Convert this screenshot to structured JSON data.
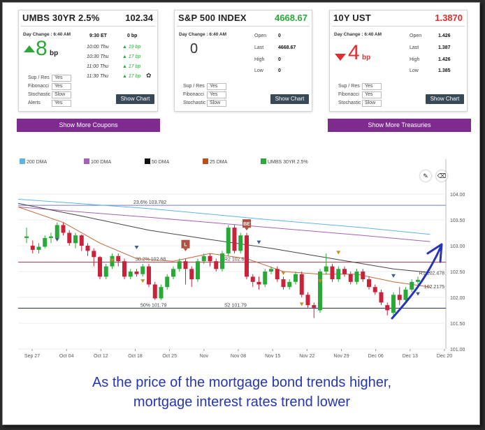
{
  "cards": {
    "umbs": {
      "title": "UMBS 30YR 2.5%",
      "value": "102.34",
      "day_change_label": "Day Change : 6:40 AM",
      "change_big": "8",
      "change_unit": "bp",
      "ticks": [
        {
          "time": "9:30 ET",
          "value": "0 bp"
        },
        {
          "time": "10:00 Thu",
          "value": "19 bp"
        },
        {
          "time": "10:30 Thu",
          "value": "17 bp"
        },
        {
          "time": "11:00 Thu",
          "value": "17 bp"
        },
        {
          "time": "11:30 Thu",
          "value": "17 bp"
        }
      ],
      "settings": [
        {
          "label": "Sup / Res",
          "value": "Yes"
        },
        {
          "label": "Fibonacci",
          "value": "Yes"
        },
        {
          "label": "Stochastic",
          "value": "Slow"
        },
        {
          "label": "Alerts",
          "value": "Yes"
        }
      ],
      "button": "Show Chart"
    },
    "sp500": {
      "title": "S&P 500 INDEX",
      "value": "4668.67",
      "value_color": "#2aa838",
      "day_change_label": "Day Change : 6:40 AM",
      "change_big": "0",
      "stats": [
        {
          "label": "Open",
          "value": "0"
        },
        {
          "label": "Last",
          "value": "4668.67"
        },
        {
          "label": "High",
          "value": "0"
        },
        {
          "label": "Low",
          "value": "0"
        }
      ],
      "settings": [
        {
          "label": "Sup / Res",
          "value": "Yes"
        },
        {
          "label": "Fibonacci",
          "value": "Yes"
        },
        {
          "label": "Stochastic",
          "value": "Slow"
        }
      ],
      "button": "Show Chart"
    },
    "ust": {
      "title": "10Y UST",
      "value": "1.3870",
      "value_color": "#e12d2d",
      "day_change_label": "Day Change : 6:40 AM",
      "change_big": "4",
      "change_unit": "bp",
      "stats": [
        {
          "label": "Open",
          "value": "1.426"
        },
        {
          "label": "Last",
          "value": "1.387"
        },
        {
          "label": "High",
          "value": "1.426"
        },
        {
          "label": "Low",
          "value": "1.385"
        }
      ],
      "settings": [
        {
          "label": "Sup / Res",
          "value": "Yes"
        },
        {
          "label": "Fibonacci",
          "value": "Yes"
        },
        {
          "label": "Stochastic",
          "value": "Slow"
        }
      ],
      "button": "Show Chart"
    }
  },
  "buttons": {
    "more_coupons": "Show More Coupons",
    "more_treasuries": "Show More Treasuries"
  },
  "legend": [
    {
      "label": "200 DMA",
      "color": "#5fb4e6"
    },
    {
      "label": "100 DMA",
      "color": "#a85fb7"
    },
    {
      "label": "50 DMA",
      "color": "#111111"
    },
    {
      "label": "25 DMA",
      "color": "#b8501e"
    },
    {
      "label": "UMBS 30YR 2.5%",
      "color": "#2aa838"
    }
  ],
  "chart_data": {
    "type": "candlestick",
    "y_ticks": [
      "104.00",
      "103.50",
      "103.00",
      "102.50",
      "102.00",
      "101.50",
      "101.00"
    ],
    "ylim": [
      101.0,
      104.0
    ],
    "x_ticks": [
      "Sep 27",
      "Oct 04",
      "Oct 12",
      "Oct 18",
      "Oct 25",
      "Nov",
      "Nov 08",
      "Nov 15",
      "Nov 22",
      "Nov 29",
      "Dec 06",
      "Dec 13",
      "Dec 20"
    ],
    "levels": [
      {
        "label": "23.6% 103.782",
        "value": 103.782,
        "color": "#7777cc"
      },
      {
        "label": "38.2% 102.68",
        "value": 102.68,
        "color": "#b0304a"
      },
      {
        "label": "R2 102.68",
        "value": 102.68,
        "color": "#b0304a"
      },
      {
        "label": "50% 101.79",
        "value": 101.79,
        "color": "#223366"
      },
      {
        "label": "S2 101.79",
        "value": 101.79,
        "color": "#223366"
      }
    ],
    "right_labels": [
      {
        "label": "R1 102.478",
        "value": 102.478
      },
      {
        "label": "102.2175",
        "value": 102.2175
      }
    ],
    "markers": [
      {
        "label": "L",
        "index": 26
      },
      {
        "label": "BE",
        "index": 36
      }
    ],
    "candles": [
      {
        "o": 103.15,
        "c": 103.18,
        "h": 103.35,
        "l": 103.05
      },
      {
        "o": 103.0,
        "c": 102.92,
        "h": 103.1,
        "l": 102.85
      },
      {
        "o": 102.92,
        "c": 102.98,
        "h": 103.05,
        "l": 102.85
      },
      {
        "o": 102.98,
        "c": 103.15,
        "h": 103.2,
        "l": 102.95
      },
      {
        "o": 103.15,
        "c": 103.18,
        "h": 103.25,
        "l": 103.05
      },
      {
        "o": 103.15,
        "c": 103.4,
        "h": 103.45,
        "l": 103.1
      },
      {
        "o": 103.4,
        "c": 103.25,
        "h": 103.45,
        "l": 103.2
      },
      {
        "o": 103.25,
        "c": 103.05,
        "h": 103.3,
        "l": 103.0
      },
      {
        "o": 103.05,
        "c": 103.2,
        "h": 103.25,
        "l": 102.95
      },
      {
        "o": 103.2,
        "c": 103.0,
        "h": 103.22,
        "l": 102.9
      },
      {
        "o": 103.0,
        "c": 102.9,
        "h": 103.05,
        "l": 102.8
      },
      {
        "o": 102.9,
        "c": 102.78,
        "h": 102.95,
        "l": 102.6
      },
      {
        "o": 102.78,
        "c": 102.4,
        "h": 102.8,
        "l": 102.35
      },
      {
        "o": 102.4,
        "c": 102.6,
        "h": 102.65,
        "l": 102.35
      },
      {
        "o": 102.6,
        "c": 102.8,
        "h": 102.85,
        "l": 102.55
      },
      {
        "o": 102.8,
        "c": 102.7,
        "h": 102.85,
        "l": 102.6
      },
      {
        "o": 102.7,
        "c": 102.4,
        "h": 102.75,
        "l": 102.35
      },
      {
        "o": 102.4,
        "c": 102.5,
        "h": 102.55,
        "l": 102.35
      },
      {
        "o": 102.5,
        "c": 102.45,
        "h": 102.55,
        "l": 102.4
      },
      {
        "o": 102.45,
        "c": 102.6,
        "h": 102.65,
        "l": 102.4
      },
      {
        "o": 102.6,
        "c": 102.25,
        "h": 102.65,
        "l": 102.2
      },
      {
        "o": 102.25,
        "c": 101.98,
        "h": 102.3,
        "l": 101.95
      },
      {
        "o": 101.98,
        "c": 102.2,
        "h": 102.25,
        "l": 101.95
      },
      {
        "o": 102.2,
        "c": 102.4,
        "h": 102.45,
        "l": 102.15
      },
      {
        "o": 102.4,
        "c": 102.55,
        "h": 102.6,
        "l": 102.35
      },
      {
        "o": 102.55,
        "c": 102.7,
        "h": 102.75,
        "l": 102.5
      },
      {
        "o": 102.7,
        "c": 102.55,
        "h": 102.75,
        "l": 102.25
      },
      {
        "o": 102.55,
        "c": 102.35,
        "h": 102.6,
        "l": 102.2
      },
      {
        "o": 102.35,
        "c": 102.7,
        "h": 102.75,
        "l": 102.3
      },
      {
        "o": 102.7,
        "c": 102.8,
        "h": 102.85,
        "l": 102.65
      },
      {
        "o": 102.8,
        "c": 102.7,
        "h": 102.85,
        "l": 102.6
      },
      {
        "o": 102.7,
        "c": 102.55,
        "h": 102.75,
        "l": 102.5
      },
      {
        "o": 102.55,
        "c": 102.85,
        "h": 102.9,
        "l": 102.5
      },
      {
        "o": 102.85,
        "c": 103.35,
        "h": 103.4,
        "l": 102.8
      },
      {
        "o": 103.35,
        "c": 102.9,
        "h": 103.4,
        "l": 102.85
      },
      {
        "o": 102.9,
        "c": 103.2,
        "h": 103.25,
        "l": 102.85
      },
      {
        "o": 103.2,
        "c": 102.4,
        "h": 103.25,
        "l": 102.35
      },
      {
        "o": 102.4,
        "c": 102.3,
        "h": 102.45,
        "l": 102.2
      },
      {
        "o": 102.3,
        "c": 102.25,
        "h": 102.4,
        "l": 102.15
      },
      {
        "o": 102.25,
        "c": 102.5,
        "h": 102.55,
        "l": 102.2
      },
      {
        "o": 102.5,
        "c": 102.55,
        "h": 102.6,
        "l": 102.45
      },
      {
        "o": 102.55,
        "c": 102.35,
        "h": 102.6,
        "l": 102.3
      },
      {
        "o": 102.35,
        "c": 102.2,
        "h": 102.4,
        "l": 102.15
      },
      {
        "o": 102.2,
        "c": 102.3,
        "h": 102.35,
        "l": 102.15
      },
      {
        "o": 102.3,
        "c": 102.45,
        "h": 102.5,
        "l": 102.25
      },
      {
        "o": 102.45,
        "c": 102.05,
        "h": 102.5,
        "l": 102.0
      },
      {
        "o": 102.05,
        "c": 101.85,
        "h": 102.1,
        "l": 101.8
      },
      {
        "o": 101.85,
        "c": 101.8,
        "h": 101.9,
        "l": 101.6
      },
      {
        "o": 101.75,
        "c": 102.5,
        "h": 102.55,
        "l": 101.7
      },
      {
        "o": 102.5,
        "c": 102.6,
        "h": 102.85,
        "l": 102.45
      },
      {
        "o": 102.6,
        "c": 102.35,
        "h": 102.65,
        "l": 102.3
      },
      {
        "o": 102.35,
        "c": 102.55,
        "h": 102.6,
        "l": 102.3
      },
      {
        "o": 102.55,
        "c": 102.45,
        "h": 102.6,
        "l": 102.4
      },
      {
        "o": 102.45,
        "c": 102.3,
        "h": 102.5,
        "l": 102.25
      },
      {
        "o": 102.3,
        "c": 102.5,
        "h": 102.55,
        "l": 102.25
      },
      {
        "o": 102.5,
        "c": 102.35,
        "h": 102.55,
        "l": 102.3
      },
      {
        "o": 102.35,
        "c": 102.2,
        "h": 102.4,
        "l": 102.15
      },
      {
        "o": 102.2,
        "c": 102.1,
        "h": 102.25,
        "l": 102.05
      },
      {
        "o": 102.1,
        "c": 101.9,
        "h": 102.15,
        "l": 101.85
      },
      {
        "o": 101.85,
        "c": 101.75,
        "h": 101.9,
        "l": 101.65
      },
      {
        "o": 101.7,
        "c": 102.05,
        "h": 102.1,
        "l": 101.65
      },
      {
        "o": 102.05,
        "c": 101.95,
        "h": 102.2,
        "l": 101.85
      },
      {
        "o": 101.95,
        "c": 102.15,
        "h": 102.2,
        "l": 101.9
      },
      {
        "o": 102.15,
        "c": 102.3,
        "h": 102.35,
        "l": 102.1
      },
      {
        "o": 102.3,
        "c": 102.34,
        "h": 102.4,
        "l": 102.25
      }
    ],
    "ma200": [
      [
        0,
        103.9
      ],
      [
        20,
        103.72
      ],
      [
        40,
        103.5
      ],
      [
        55,
        103.35
      ],
      [
        66,
        103.22
      ]
    ],
    "ma100": [
      [
        0,
        103.75
      ],
      [
        20,
        103.55
      ],
      [
        40,
        103.35
      ],
      [
        55,
        103.2
      ],
      [
        66,
        103.08
      ]
    ],
    "ma50": [
      [
        0,
        103.82
      ],
      [
        10,
        103.55
      ],
      [
        20,
        103.3
      ],
      [
        30,
        103.12
      ],
      [
        40,
        102.95
      ],
      [
        50,
        102.75
      ],
      [
        60,
        102.55
      ],
      [
        66,
        102.48
      ]
    ],
    "ma25": [
      [
        0,
        103.75
      ],
      [
        6,
        103.45
      ],
      [
        12,
        103.05
      ],
      [
        18,
        102.75
      ],
      [
        24,
        102.7
      ],
      [
        30,
        102.85
      ],
      [
        36,
        102.75
      ],
      [
        42,
        102.5
      ],
      [
        48,
        102.45
      ],
      [
        54,
        102.45
      ],
      [
        60,
        102.3
      ],
      [
        66,
        102.2
      ]
    ]
  },
  "caption": {
    "line1": "As the price of the mortgage bond trends higher,",
    "line2": "mortgage interest rates trend lower"
  }
}
